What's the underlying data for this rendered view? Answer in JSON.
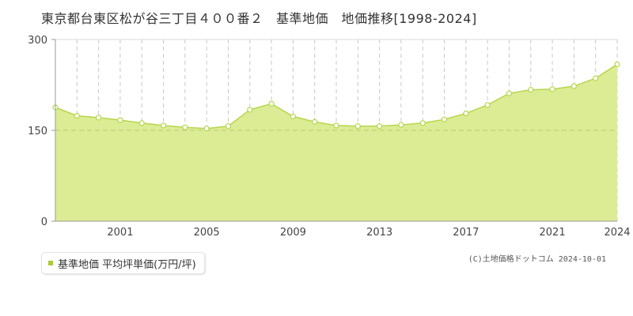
{
  "chart_data": {
    "type": "area",
    "title": "東京都台東区松が谷三丁目４００番２　基準地価　地価推移[1998-2024]",
    "x": [
      1998,
      1999,
      2000,
      2001,
      2002,
      2003,
      2004,
      2005,
      2006,
      2007,
      2008,
      2009,
      2010,
      2011,
      2012,
      2013,
      2014,
      2015,
      2016,
      2017,
      2018,
      2019,
      2020,
      2021,
      2022,
      2023,
      2024
    ],
    "series": [
      {
        "name": "基準地価 平均坪単価(万円/坪)",
        "values": [
          188,
          174,
          171,
          167,
          162,
          158,
          155,
          153,
          157,
          184,
          194,
          173,
          164,
          158,
          157,
          157,
          159,
          162,
          168,
          178,
          192,
          211,
          217,
          218,
          223,
          236,
          259
        ]
      }
    ],
    "ylim": [
      0,
      300
    ],
    "yticks": [
      0,
      150,
      300
    ],
    "xticks": [
      2001,
      2005,
      2009,
      2013,
      2017,
      2021,
      2024
    ],
    "xlim": [
      1998,
      2024
    ],
    "grid": true,
    "legend_position": "bottom-left",
    "colors": {
      "fill": "#dcec94",
      "line": "#b6d64c",
      "marker_fill": "#ffffff",
      "marker_stroke": "#b6d64c"
    }
  },
  "legend": {
    "label": "基準地価 平均坪単価(万円/坪)"
  },
  "credit": "(C)土地価格ドットコム 2024-10-01"
}
